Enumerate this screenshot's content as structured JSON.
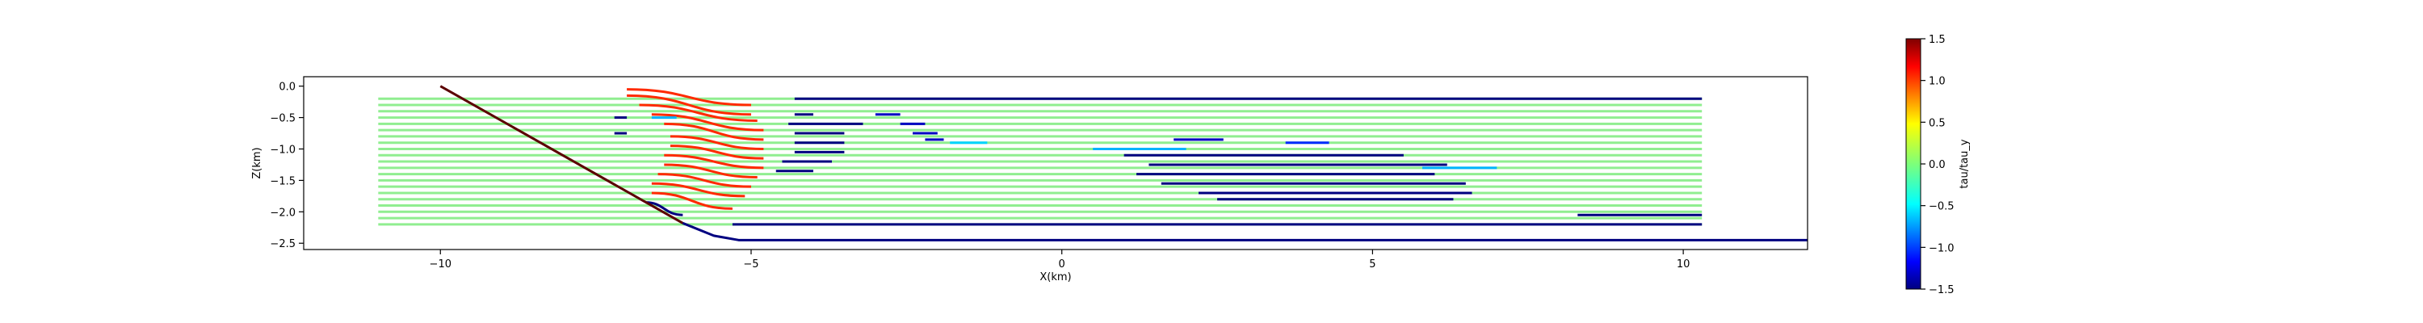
{
  "chart_data": {
    "type": "line",
    "title": "",
    "xlabel": "X(km)",
    "ylabel": "Z(km)",
    "xlim": [
      -12.2,
      12.0
    ],
    "ylim": [
      -2.6,
      0.15
    ],
    "xticks": [
      -10,
      -5,
      0,
      5,
      10
    ],
    "xtick_labels": [
      "−10",
      "−5",
      "0",
      "5",
      "10"
    ],
    "yticks": [
      0.0,
      -0.5,
      -1.0,
      -1.5,
      -2.0,
      -2.5
    ],
    "ytick_labels": [
      "0.0",
      "−0.5",
      "−1.0",
      "−1.5",
      "−2.0",
      "−2.5"
    ],
    "grid": false,
    "colorbar": {
      "label": "tau/tau_y",
      "range": [
        -1.5,
        1.5
      ],
      "ticks": [
        1.5,
        1.0,
        0.5,
        0.0,
        -0.5,
        -1.0,
        -1.5
      ],
      "tick_labels": [
        "1.5",
        "1.0",
        "0.5",
        "0.0",
        "−0.5",
        "−1.0",
        "−1.5"
      ],
      "colormap": "jet"
    },
    "series": [
      {
        "role": "wall",
        "color": "#5b0000",
        "x": [
          -10.0,
          -6.1
        ],
        "y": [
          0.0,
          -2.18
        ]
      },
      {
        "role": "bottom",
        "color": "#000080",
        "x": [
          -6.1,
          -5.6,
          -5.2,
          12.0
        ],
        "y": [
          -2.18,
          -2.38,
          -2.45,
          -2.45
        ]
      }
    ],
    "streamlines": [
      {
        "y": -0.2,
        "x_start": -11.0,
        "x_end": 10.3
      },
      {
        "y": -0.3,
        "x_start": -11.0,
        "x_end": 10.3
      },
      {
        "y": -0.4,
        "x_start": -11.0,
        "x_end": 10.3
      },
      {
        "y": -0.5,
        "x_start": -11.0,
        "x_end": 10.3
      },
      {
        "y": -0.6,
        "x_start": -11.0,
        "x_end": 10.3
      },
      {
        "y": -0.7,
        "x_start": -11.0,
        "x_end": 10.3
      },
      {
        "y": -0.8,
        "x_start": -11.0,
        "x_end": 10.3
      },
      {
        "y": -0.9,
        "x_start": -11.0,
        "x_end": 10.3
      },
      {
        "y": -1.0,
        "x_start": -11.0,
        "x_end": 10.3
      },
      {
        "y": -1.1,
        "x_start": -11.0,
        "x_end": 10.3
      },
      {
        "y": -1.2,
        "x_start": -11.0,
        "x_end": 10.3
      },
      {
        "y": -1.3,
        "x_start": -11.0,
        "x_end": 10.3
      },
      {
        "y": -1.4,
        "x_start": -11.0,
        "x_end": 10.3
      },
      {
        "y": -1.5,
        "x_start": -11.0,
        "x_end": 10.3
      },
      {
        "y": -1.6,
        "x_start": -11.0,
        "x_end": 10.3
      },
      {
        "y": -1.7,
        "x_start": -11.0,
        "x_end": 10.3
      },
      {
        "y": -1.8,
        "x_start": -11.0,
        "x_end": 10.3
      },
      {
        "y": -1.9,
        "x_start": -11.0,
        "x_end": 10.3
      },
      {
        "y": -2.0,
        "x_start": -11.0,
        "x_end": 10.3
      },
      {
        "y": -2.1,
        "x_start": -11.0,
        "x_end": 10.3
      },
      {
        "y": -2.2,
        "x_start": -11.0,
        "x_end": 10.3
      }
    ],
    "stress_segments": [
      {
        "value": 1.0,
        "x": [
          -7.0,
          -5.0
        ],
        "y": [
          -0.05,
          -0.3
        ]
      },
      {
        "value": 1.0,
        "x": [
          -7.0,
          -5.0
        ],
        "y": [
          -0.15,
          -0.45
        ]
      },
      {
        "value": 1.0,
        "x": [
          -6.8,
          -4.9
        ],
        "y": [
          -0.3,
          -0.55
        ]
      },
      {
        "value": 1.0,
        "x": [
          -6.6,
          -4.8
        ],
        "y": [
          -0.45,
          -0.7
        ]
      },
      {
        "value": 1.0,
        "x": [
          -6.4,
          -4.8
        ],
        "y": [
          -0.6,
          -0.85
        ]
      },
      {
        "value": 1.0,
        "x": [
          -6.3,
          -4.8
        ],
        "y": [
          -0.8,
          -1.0
        ]
      },
      {
        "value": 1.0,
        "x": [
          -6.3,
          -4.8
        ],
        "y": [
          -0.95,
          -1.15
        ]
      },
      {
        "value": 1.0,
        "x": [
          -6.4,
          -4.8
        ],
        "y": [
          -1.1,
          -1.3
        ]
      },
      {
        "value": 1.0,
        "x": [
          -6.4,
          -4.9
        ],
        "y": [
          -1.25,
          -1.45
        ]
      },
      {
        "value": 1.0,
        "x": [
          -6.5,
          -5.0
        ],
        "y": [
          -1.4,
          -1.6
        ]
      },
      {
        "value": 1.0,
        "x": [
          -6.6,
          -5.1
        ],
        "y": [
          -1.55,
          -1.75
        ]
      },
      {
        "value": 1.0,
        "x": [
          -6.6,
          -5.3
        ],
        "y": [
          -1.7,
          -1.95
        ]
      },
      {
        "value": -1.5,
        "x": [
          -4.3,
          10.3
        ],
        "y": [
          -0.2,
          -0.2
        ]
      },
      {
        "value": -1.5,
        "x": [
          -4.3,
          -4.0
        ],
        "y": [
          -0.45,
          -0.45
        ]
      },
      {
        "value": -1.5,
        "x": [
          -4.4,
          -3.2
        ],
        "y": [
          -0.6,
          -0.6
        ]
      },
      {
        "value": -1.5,
        "x": [
          -4.3,
          -3.5
        ],
        "y": [
          -0.75,
          -0.75
        ]
      },
      {
        "value": -1.5,
        "x": [
          -4.3,
          -3.5
        ],
        "y": [
          -0.9,
          -0.9
        ]
      },
      {
        "value": -1.5,
        "x": [
          -4.3,
          -3.5
        ],
        "y": [
          -1.05,
          -1.05
        ]
      },
      {
        "value": -1.5,
        "x": [
          -4.5,
          -3.7
        ],
        "y": [
          -1.2,
          -1.2
        ]
      },
      {
        "value": -1.5,
        "x": [
          -4.6,
          -4.0
        ],
        "y": [
          -1.35,
          -1.35
        ]
      },
      {
        "value": -1.3,
        "x": [
          -3.0,
          -2.6
        ],
        "y": [
          -0.45,
          -0.45
        ]
      },
      {
        "value": -1.3,
        "x": [
          -2.6,
          -2.2
        ],
        "y": [
          -0.6,
          -0.6
        ]
      },
      {
        "value": -1.3,
        "x": [
          -2.4,
          -2.0
        ],
        "y": [
          -0.75,
          -0.75
        ]
      },
      {
        "value": -1.3,
        "x": [
          -2.2,
          -1.9
        ],
        "y": [
          -0.85,
          -0.85
        ]
      },
      {
        "value": -0.5,
        "x": [
          -1.8,
          -1.2
        ],
        "y": [
          -0.9,
          -0.9
        ]
      },
      {
        "value": -1.3,
        "x": [
          1.8,
          2.6
        ],
        "y": [
          -0.85,
          -0.85
        ]
      },
      {
        "value": -1.0,
        "x": [
          3.6,
          4.3
        ],
        "y": [
          -0.9,
          -0.9
        ]
      },
      {
        "value": -1.5,
        "x": [
          1.0,
          5.5
        ],
        "y": [
          -1.1,
          -1.1
        ]
      },
      {
        "value": -1.5,
        "x": [
          1.4,
          6.2
        ],
        "y": [
          -1.25,
          -1.25
        ]
      },
      {
        "value": -1.5,
        "x": [
          1.2,
          6.0
        ],
        "y": [
          -1.4,
          -1.4
        ]
      },
      {
        "value": -1.5,
        "x": [
          1.6,
          6.5
        ],
        "y": [
          -1.55,
          -1.55
        ]
      },
      {
        "value": -1.5,
        "x": [
          2.2,
          6.6
        ],
        "y": [
          -1.7,
          -1.7
        ]
      },
      {
        "value": -1.5,
        "x": [
          2.5,
          6.3
        ],
        "y": [
          -1.8,
          -1.8
        ]
      },
      {
        "value": -0.6,
        "x": [
          0.5,
          2.0
        ],
        "y": [
          -1.0,
          -1.0
        ]
      },
      {
        "value": -0.6,
        "x": [
          5.8,
          7.0
        ],
        "y": [
          -1.3,
          -1.3
        ]
      },
      {
        "value": -0.6,
        "x": [
          -6.6,
          -6.2
        ],
        "y": [
          -0.5,
          -0.5
        ]
      },
      {
        "value": -1.5,
        "x": [
          -7.2,
          -7.0
        ],
        "y": [
          -0.5,
          -0.5
        ]
      },
      {
        "value": -1.5,
        "x": [
          -7.2,
          -7.0
        ],
        "y": [
          -0.75,
          -0.75
        ]
      },
      {
        "value": -1.5,
        "x": [
          -6.7,
          -6.1
        ],
        "y": [
          -1.85,
          -2.05
        ]
      },
      {
        "value": -1.5,
        "x": [
          -5.3,
          10.3
        ],
        "y": [
          -2.2,
          -2.2
        ]
      },
      {
        "value": -1.5,
        "x": [
          8.3,
          10.3
        ],
        "y": [
          -2.05,
          -2.05
        ]
      }
    ]
  }
}
